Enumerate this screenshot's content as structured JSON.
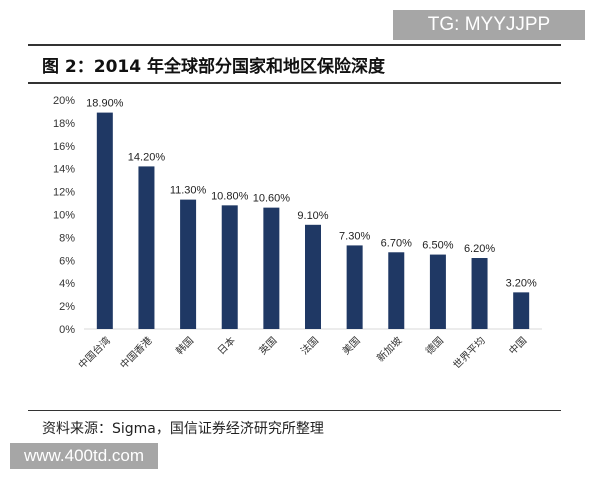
{
  "watermark_top": "TG: MYYJJPP",
  "title": "图 2：2014 年全球部分国家和地区保险深度",
  "source": "资料来源：Sigma，国信证券经济研究所整理",
  "watermark_bottom": "www.400td.com",
  "chart_data": {
    "type": "bar",
    "categories": [
      "中国台湾",
      "中国香港",
      "韩国",
      "日本",
      "英国",
      "法国",
      "美国",
      "新加坡",
      "德国",
      "世界平均",
      "中国"
    ],
    "values": [
      18.9,
      14.2,
      11.3,
      10.8,
      10.6,
      9.1,
      7.3,
      6.7,
      6.5,
      6.2,
      3.2
    ],
    "data_labels": [
      "18.90%",
      "14.20%",
      "11.30%",
      "10.80%",
      "10.60%",
      "9.10%",
      "7.30%",
      "6.70%",
      "6.50%",
      "6.20%",
      "3.20%"
    ],
    "y_ticks": [
      "0%",
      "2%",
      "4%",
      "6%",
      "8%",
      "10%",
      "12%",
      "14%",
      "16%",
      "18%",
      "20%"
    ],
    "ylim": [
      0,
      20
    ],
    "grid": false,
    "bar_color": "#1f3864",
    "title": "图 2：2014 年全球部分国家和地区保险深度"
  }
}
